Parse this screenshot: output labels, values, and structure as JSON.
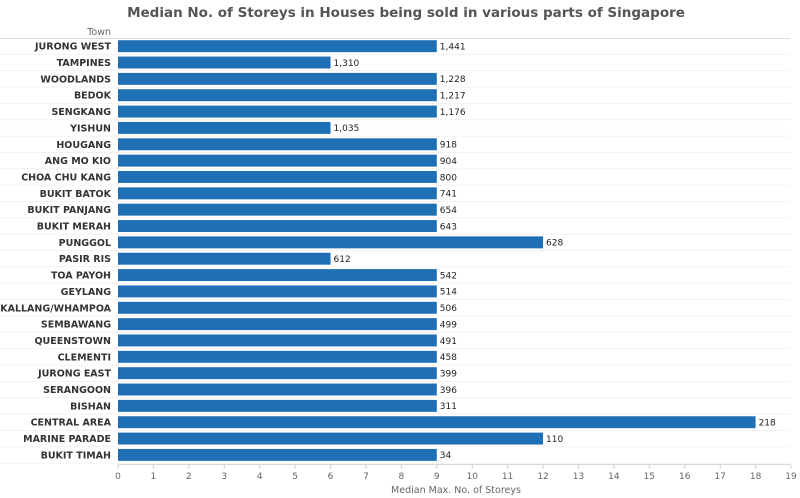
{
  "chart_data": {
    "type": "bar",
    "orientation": "horizontal",
    "title": "Median No. of Storeys in Houses being sold in various parts of Singapore",
    "row_header": "Town",
    "xlabel": "Median Max. No. of Storeys",
    "xlim": [
      0,
      19
    ],
    "xticks": [
      0,
      1,
      2,
      3,
      4,
      5,
      6,
      7,
      8,
      9,
      10,
      11,
      12,
      13,
      14,
      15,
      16,
      17,
      18,
      19
    ],
    "grid": false,
    "bar_color": "#1f6fb4",
    "categories": [
      "JURONG WEST",
      "TAMPINES",
      "WOODLANDS",
      "BEDOK",
      "SENGKANG",
      "YISHUN",
      "HOUGANG",
      "ANG MO KIO",
      "CHOA CHU KANG",
      "BUKIT BATOK",
      "BUKIT PANJANG",
      "BUKIT MERAH",
      "PUNGGOL",
      "PASIR RIS",
      "TOA PAYOH",
      "GEYLANG",
      "KALLANG/WHAMPOA",
      "SEMBAWANG",
      "QUEENSTOWN",
      "CLEMENTI",
      "JURONG EAST",
      "SERANGOON",
      "BISHAN",
      "CENTRAL AREA",
      "MARINE PARADE",
      "BUKIT TIMAH"
    ],
    "values": [
      9,
      6,
      9,
      9,
      9,
      6,
      9,
      9,
      9,
      9,
      9,
      9,
      12,
      6,
      9,
      9,
      9,
      9,
      9,
      9,
      9,
      9,
      9,
      18,
      12,
      9
    ],
    "bar_labels": [
      "1,441",
      "1,310",
      "1,228",
      "1,217",
      "1,176",
      "1,035",
      "918",
      "904",
      "800",
      "741",
      "654",
      "643",
      "628",
      "612",
      "542",
      "514",
      "506",
      "499",
      "491",
      "458",
      "399",
      "396",
      "311",
      "218",
      "110",
      "34"
    ]
  }
}
